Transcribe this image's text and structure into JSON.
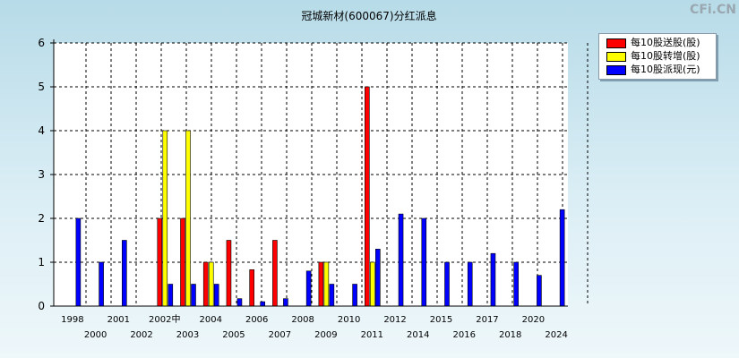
{
  "watermark": "CFi.CN",
  "chart_data": {
    "type": "bar",
    "title": "冠城新材(600067)分红派息",
    "xlabel": "",
    "ylabel": "",
    "ylim": [
      0,
      6
    ],
    "yticks": [
      0,
      1,
      2,
      3,
      4,
      5,
      6
    ],
    "grid": true,
    "legend_position": "top-right",
    "categories": [
      "1998",
      "2000",
      "2001",
      "2002",
      "2002中",
      "2003",
      "2004",
      "2005",
      "2006",
      "2007",
      "2008",
      "2009",
      "2010",
      "2011",
      "2012",
      "2014",
      "2015",
      "2016",
      "2017",
      "2018",
      "2020",
      "2024"
    ],
    "category_labels": [
      "1998",
      "2000",
      "2001",
      "2002",
      "2002中",
      "2003",
      "2004",
      "2005",
      "2006",
      "2007",
      "2008",
      "2009",
      "2010",
      "2011",
      "2012",
      "2014",
      "2015",
      "2016",
      "2017",
      "2018",
      "2020",
      "2024"
    ],
    "series": [
      {
        "name": "每10股送股(股)",
        "color": "#ff0000",
        "values": [
          0,
          0,
          0,
          0,
          2,
          2,
          1,
          1.5,
          0.83,
          1.5,
          0,
          1,
          0,
          5,
          0,
          0,
          0,
          0,
          0,
          0,
          0,
          0
        ]
      },
      {
        "name": "每10股转增(股)",
        "color": "#ffff00",
        "values": [
          0,
          0,
          0,
          0,
          4,
          4,
          1,
          0,
          0,
          0,
          0,
          1,
          0,
          1,
          0,
          0,
          0,
          0,
          0,
          0,
          0,
          0
        ]
      },
      {
        "name": "每10股派现(元)",
        "color": "#0000ff",
        "values": [
          2,
          1,
          1.5,
          0,
          0.5,
          0.5,
          0.5,
          0.17,
          0.1,
          0.17,
          0.8,
          0.5,
          0.5,
          1.3,
          2.1,
          2,
          1,
          1,
          1.2,
          1,
          0.7,
          2.2
        ]
      }
    ]
  }
}
